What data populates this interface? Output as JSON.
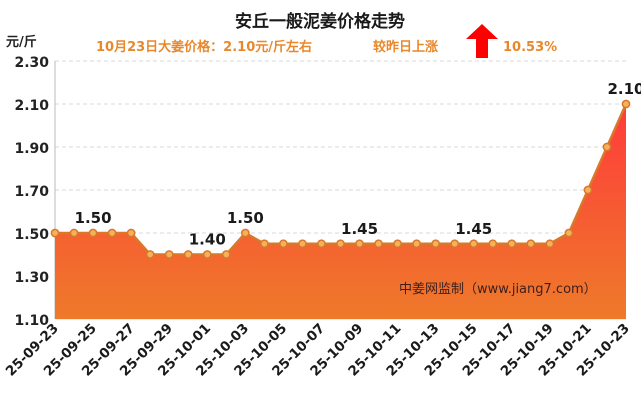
{
  "title": "安丘一般泥姜价格走势",
  "subtitle": {
    "price_text": "10月23日大姜价格：2.10元/斤左右",
    "change_text": "较昨日上涨",
    "percent_text": "10.53%"
  },
  "watermark": "中姜网监制（www.jiang7.com）",
  "colors": {
    "title": "#1a1a1a",
    "subtitle": "#e8882b",
    "line": "#d9772b",
    "area_top": "#ff3b3b",
    "area_bottom": "#ee7a2a",
    "arrow": "#ff0000",
    "grid": "#d8d8d8"
  },
  "chart_data": {
    "type": "area",
    "ylabel": "元/斤",
    "ylim": [
      1.1,
      2.3
    ],
    "yticks": [
      "1.10",
      "1.30",
      "1.50",
      "1.70",
      "1.90",
      "2.10",
      "2.30"
    ],
    "grid": true,
    "x": [
      "25-09-23",
      "25-09-24",
      "25-09-25",
      "25-09-26",
      "25-09-27",
      "25-09-28",
      "25-09-29",
      "25-09-30",
      "25-10-01",
      "25-10-02",
      "25-10-03",
      "25-10-04",
      "25-10-05",
      "25-10-06",
      "25-10-07",
      "25-10-08",
      "25-10-09",
      "25-10-10",
      "25-10-11",
      "25-10-12",
      "25-10-13",
      "25-10-14",
      "25-10-15",
      "25-10-16",
      "25-10-17",
      "25-10-18",
      "25-10-19",
      "25-10-20",
      "25-10-21",
      "25-10-22",
      "25-10-23"
    ],
    "xtick_labels": [
      "25-09-23",
      "25-09-25",
      "25-09-27",
      "25-09-29",
      "25-10-01",
      "25-10-03",
      "25-10-05",
      "25-10-07",
      "25-10-09",
      "25-10-11",
      "25-10-13",
      "25-10-15",
      "25-10-17",
      "25-10-19",
      "25-10-21",
      "25-10-23"
    ],
    "values": [
      1.5,
      1.5,
      1.5,
      1.5,
      1.5,
      1.4,
      1.4,
      1.4,
      1.4,
      1.4,
      1.5,
      1.45,
      1.45,
      1.45,
      1.45,
      1.45,
      1.45,
      1.45,
      1.45,
      1.45,
      1.45,
      1.45,
      1.45,
      1.45,
      1.45,
      1.45,
      1.45,
      1.5,
      1.7,
      1.9,
      2.1
    ],
    "data_labels": [
      {
        "index": 2,
        "text": "1.50"
      },
      {
        "index": 8,
        "text": "1.40"
      },
      {
        "index": 10,
        "text": "1.50"
      },
      {
        "index": 16,
        "text": "1.45"
      },
      {
        "index": 22,
        "text": "1.45"
      },
      {
        "index": 30,
        "text": "2.10"
      }
    ]
  }
}
